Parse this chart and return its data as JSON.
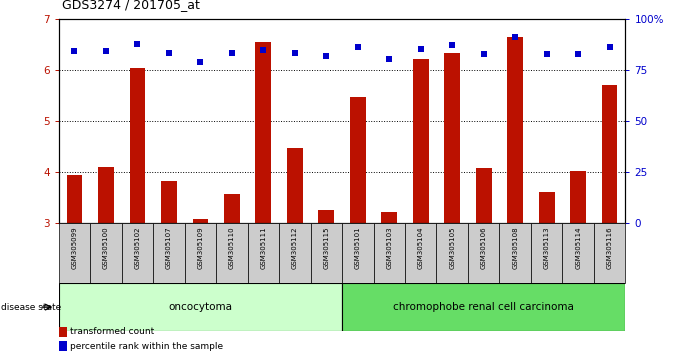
{
  "title": "GDS3274 / 201705_at",
  "samples": [
    "GSM305099",
    "GSM305100",
    "GSM305102",
    "GSM305107",
    "GSM305109",
    "GSM305110",
    "GSM305111",
    "GSM305112",
    "GSM305115",
    "GSM305101",
    "GSM305103",
    "GSM305104",
    "GSM305105",
    "GSM305106",
    "GSM305108",
    "GSM305113",
    "GSM305114",
    "GSM305116"
  ],
  "red_values": [
    3.95,
    4.1,
    6.05,
    3.83,
    3.08,
    3.58,
    6.55,
    4.47,
    3.25,
    5.47,
    3.22,
    6.22,
    6.35,
    4.08,
    6.65,
    3.6,
    4.02,
    5.72
  ],
  "blue_values": [
    6.38,
    6.38,
    6.52,
    6.35,
    6.17,
    6.35,
    6.4,
    6.35,
    6.28,
    6.45,
    6.22,
    6.42,
    6.5,
    6.33,
    6.65,
    6.33,
    6.33,
    6.45
  ],
  "red_color": "#bb1100",
  "blue_color": "#0000cc",
  "ylim_left": [
    3.0,
    7.0
  ],
  "ylim_right": [
    0,
    100
  ],
  "yticks_left": [
    3,
    4,
    5,
    6,
    7
  ],
  "yticks_right": [
    0,
    25,
    50,
    75,
    100
  ],
  "ytick_labels_right": [
    "0",
    "25",
    "50",
    "75",
    "100%"
  ],
  "group1_label": "oncocytoma",
  "group2_label": "chromophobe renal cell carcinoma",
  "group1_count": 9,
  "group2_count": 9,
  "disease_state_label": "disease state",
  "legend_red": "transformed count",
  "legend_blue": "percentile rank within the sample",
  "bar_width": 0.5,
  "background_color": "#ffffff",
  "group1_bg": "#ccffcc",
  "group2_bg": "#66dd66",
  "tick_label_bg": "#cccccc"
}
